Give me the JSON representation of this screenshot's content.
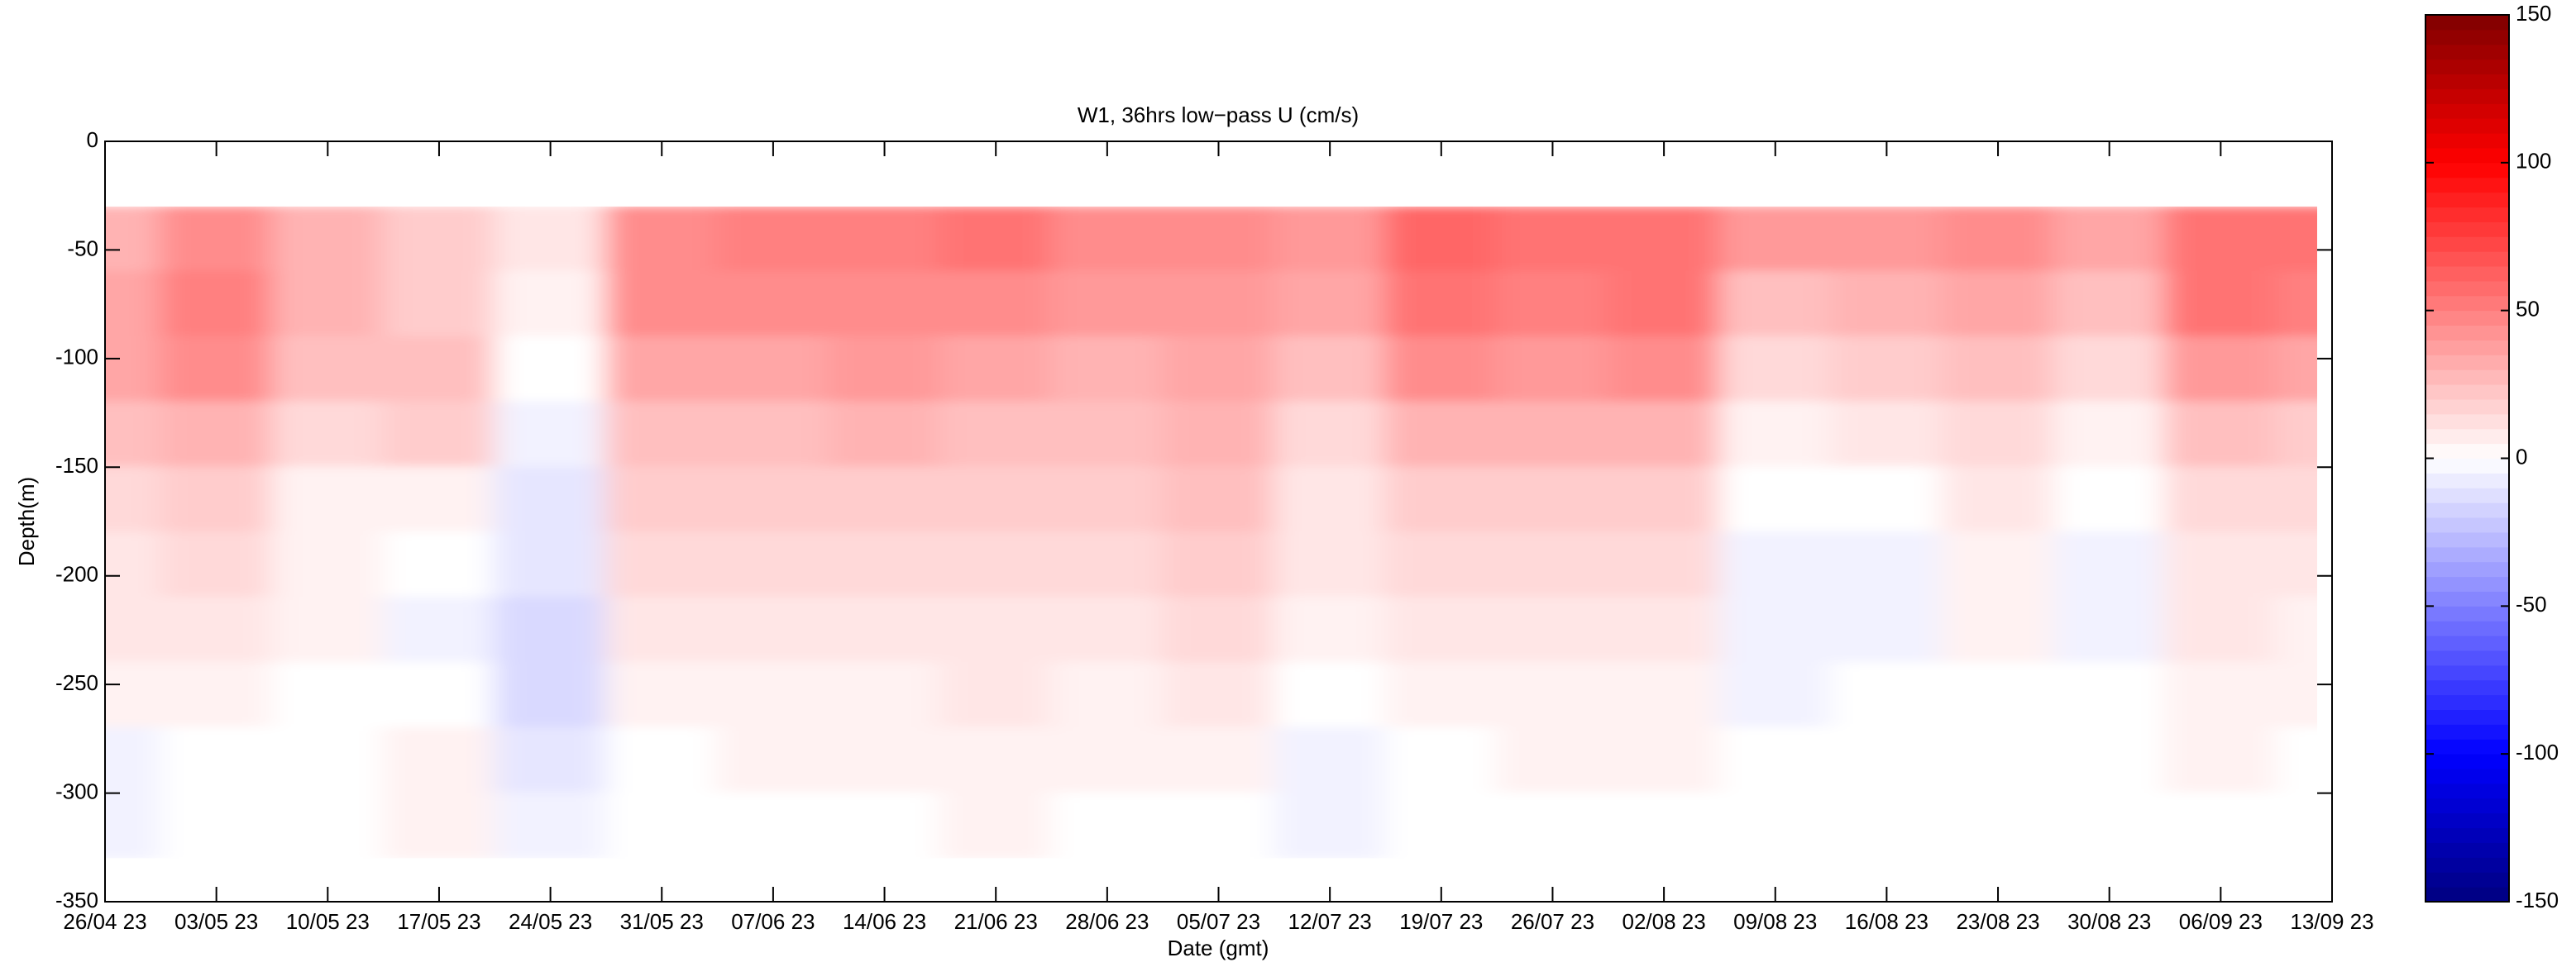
{
  "chart_data": {
    "type": "heatmap",
    "title": "W1, 36hrs low−pass U (cm/s)",
    "x_label": "Date (gmt)",
    "y_label": "Depth(m)",
    "x": [
      "26/04 23",
      "03/05 23",
      "10/05 23",
      "17/05 23",
      "24/05 23",
      "31/05 23",
      "07/06 23",
      "14/06 23",
      "21/06 23",
      "28/06 23",
      "05/07 23",
      "12/07 23",
      "19/07 23",
      "26/07 23",
      "02/08 23",
      "09/08 23",
      "16/08 23",
      "23/08 23",
      "30/08 23",
      "06/09 23",
      "13/09 23"
    ],
    "y": [
      -45,
      -75,
      -105,
      -135,
      -165,
      -195,
      -225,
      -255,
      -285,
      -315
    ],
    "values": [
      [
        30,
        35,
        35,
        25,
        15,
        10,
        10,
        5,
        -5,
        -5
      ],
      [
        45,
        50,
        45,
        30,
        20,
        15,
        10,
        5,
        0,
        0
      ],
      [
        30,
        30,
        25,
        15,
        5,
        5,
        5,
        0,
        0,
        0
      ],
      [
        20,
        20,
        25,
        20,
        5,
        0,
        -5,
        0,
        5,
        5
      ],
      [
        10,
        5,
        0,
        -5,
        -10,
        -10,
        -15,
        -15,
        -10,
        -5
      ],
      [
        45,
        45,
        35,
        25,
        20,
        15,
        10,
        5,
        0,
        0
      ],
      [
        50,
        45,
        35,
        25,
        20,
        15,
        10,
        5,
        5,
        0
      ],
      [
        50,
        45,
        40,
        30,
        20,
        15,
        10,
        5,
        5,
        0
      ],
      [
        55,
        45,
        35,
        25,
        20,
        15,
        10,
        10,
        5,
        5
      ],
      [
        45,
        40,
        30,
        25,
        20,
        15,
        10,
        5,
        5,
        0
      ],
      [
        45,
        40,
        35,
        30,
        25,
        20,
        15,
        10,
        5,
        0
      ],
      [
        40,
        35,
        25,
        15,
        10,
        10,
        5,
        0,
        -5,
        -5
      ],
      [
        60,
        55,
        45,
        30,
        20,
        15,
        10,
        5,
        0,
        0
      ],
      [
        55,
        50,
        40,
        30,
        20,
        15,
        10,
        5,
        5,
        0
      ],
      [
        55,
        55,
        45,
        30,
        20,
        15,
        10,
        5,
        5,
        0
      ],
      [
        40,
        25,
        15,
        5,
        0,
        -5,
        -5,
        -5,
        0,
        0
      ],
      [
        40,
        30,
        20,
        10,
        0,
        -5,
        -5,
        0,
        0,
        0
      ],
      [
        45,
        35,
        25,
        15,
        10,
        5,
        5,
        0,
        0,
        0
      ],
      [
        35,
        25,
        15,
        5,
        0,
        -5,
        -5,
        0,
        0,
        0
      ],
      [
        55,
        55,
        40,
        25,
        15,
        10,
        10,
        5,
        5,
        0
      ],
      [
        55,
        50,
        35,
        20,
        15,
        10,
        5,
        5,
        0,
        0
      ]
    ],
    "xlim": [
      "26/04 23",
      "13/09 23"
    ],
    "xticks": [
      "26/04 23",
      "03/05 23",
      "10/05 23",
      "17/05 23",
      "24/05 23",
      "31/05 23",
      "07/06 23",
      "14/06 23",
      "21/06 23",
      "28/06 23",
      "05/07 23",
      "12/07 23",
      "19/07 23",
      "26/07 23",
      "02/08 23",
      "09/08 23",
      "16/08 23",
      "23/08 23",
      "30/08 23",
      "06/09 23",
      "13/09 23"
    ],
    "ylim": [
      -350,
      0
    ],
    "yticks": [
      -350,
      -300,
      -250,
      -200,
      -150,
      -100,
      -50,
      0
    ],
    "clim": [
      -150,
      150
    ],
    "cticks": [
      -150,
      -100,
      -50,
      0,
      50,
      100,
      150
    ],
    "colormap": [
      "#000080",
      "#0000ff",
      "#ffffff",
      "#ff0000",
      "#800000"
    ]
  }
}
